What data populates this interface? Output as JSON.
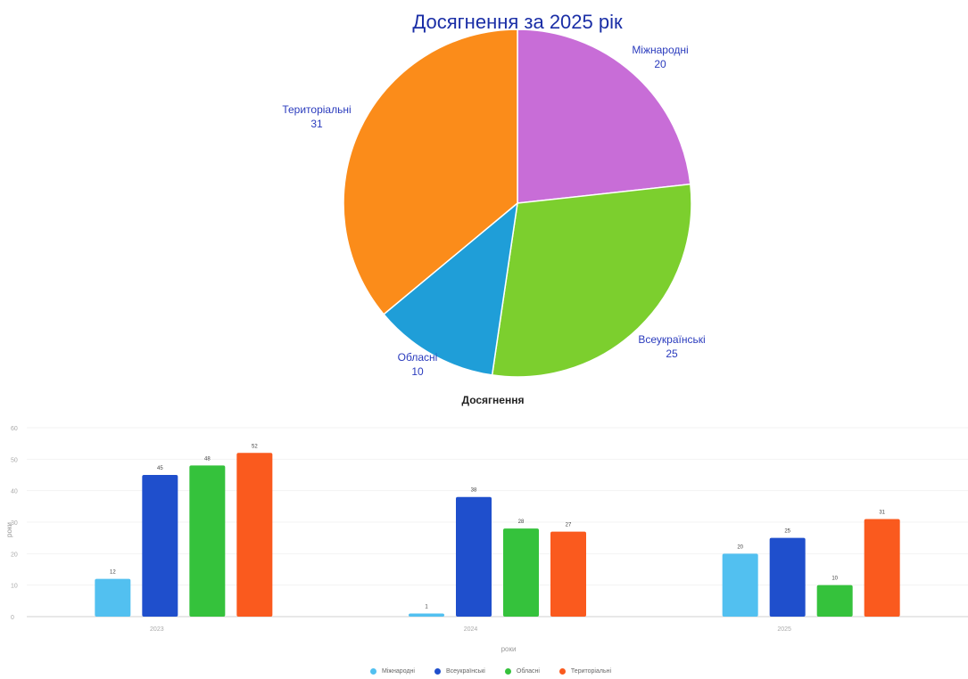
{
  "chart_data": [
    {
      "type": "pie",
      "title": "Досягнення за 2025 рік",
      "slices": [
        {
          "label": "Міжнародні",
          "value": 20,
          "color": "#c86dd7"
        },
        {
          "label": "Всеукраїнські",
          "value": 25,
          "color": "#7ccf2e"
        },
        {
          "label": "Обласні",
          "value": 10,
          "color": "#1f9ed8"
        },
        {
          "label": "Територіальні",
          "value": 31,
          "color": "#fb8c1a"
        }
      ]
    },
    {
      "type": "bar",
      "title": "Досягнення",
      "xlabel": "роки",
      "ylabel": "роки",
      "ylim": [
        0,
        60
      ],
      "yticks": [
        0,
        10,
        20,
        30,
        40,
        50,
        60
      ],
      "categories": [
        "2023",
        "2024",
        "2025"
      ],
      "series": [
        {
          "name": "Міжнародні",
          "color": "#52c0f0",
          "values": [
            12,
            1,
            20
          ]
        },
        {
          "name": "Всеукраїнські",
          "color": "#1f4fcc",
          "values": [
            45,
            38,
            25
          ]
        },
        {
          "name": "Обласні",
          "color": "#35c23c",
          "values": [
            48,
            28,
            10
          ]
        },
        {
          "name": "Територіальні",
          "color": "#fa5a1e",
          "values": [
            52,
            27,
            31
          ]
        }
      ]
    }
  ]
}
